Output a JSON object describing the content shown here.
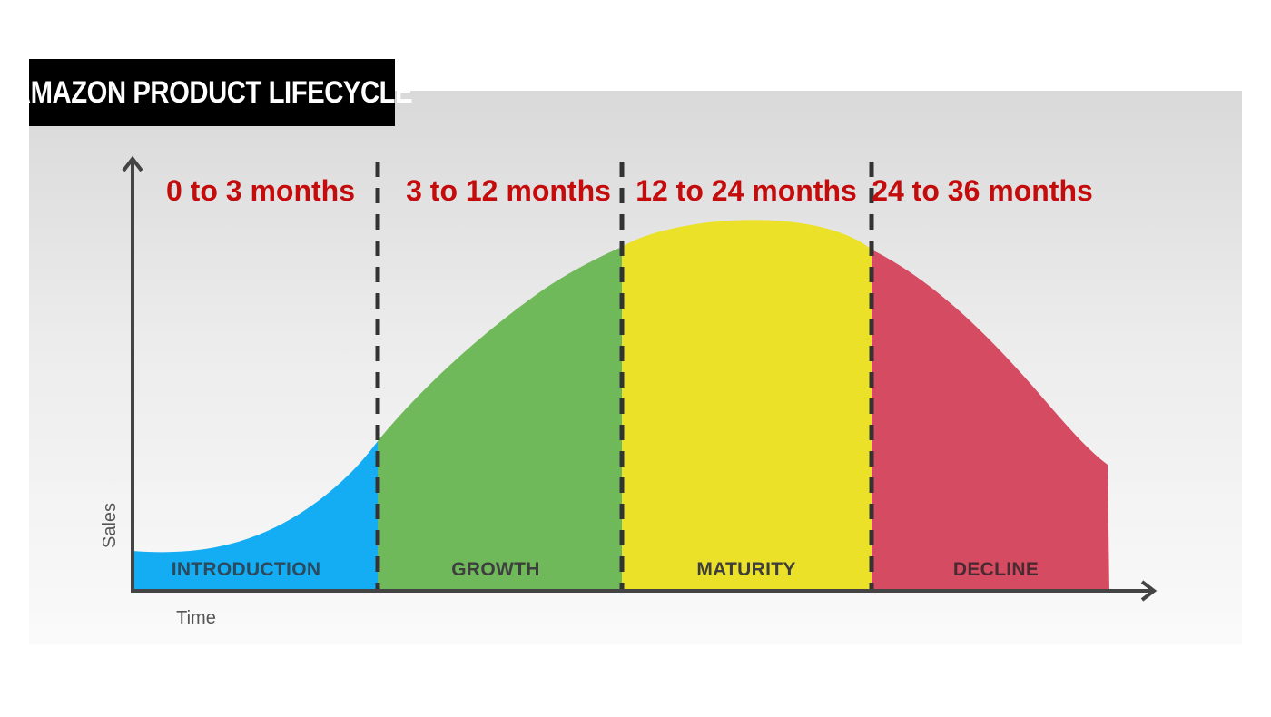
{
  "title": "AMAZON PRODUCT LIFECYCLE",
  "axes": {
    "y_label": "Sales",
    "x_label": "Time"
  },
  "stages": [
    {
      "name": "INTRODUCTION",
      "period": "0 to 3 months",
      "color": "#14acf2",
      "label_color": "#2c4a5e"
    },
    {
      "name": "GROWTH",
      "period": "3 to 12 months",
      "color": "#6fb95b",
      "label_color": "#3e3e3e"
    },
    {
      "name": "MATURITY",
      "period": "12 to 24 months",
      "color": "#ebe128",
      "label_color": "#3e3e3e"
    },
    {
      "name": "DECLINE",
      "period": "24 to 36 months",
      "color": "#d44b62",
      "label_color": "#4a2a30"
    }
  ],
  "colors": {
    "period_text": "#c40c0c",
    "axis": "#444444",
    "divider": "#333333"
  }
}
